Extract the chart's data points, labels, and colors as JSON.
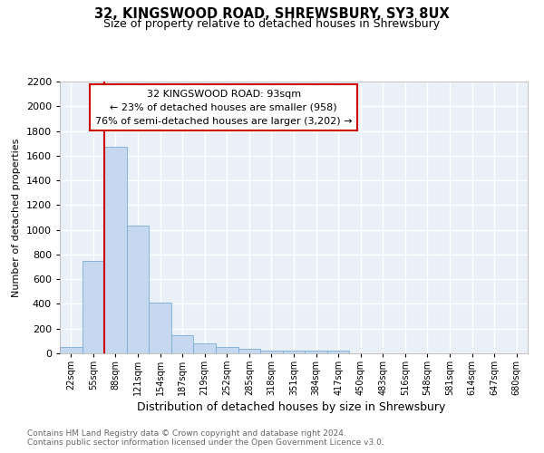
{
  "title": "32, KINGSWOOD ROAD, SHREWSBURY, SY3 8UX",
  "subtitle": "Size of property relative to detached houses in Shrewsbury",
  "xlabel": "Distribution of detached houses by size in Shrewsbury",
  "ylabel": "Number of detached properties",
  "bin_labels": [
    "22sqm",
    "55sqm",
    "88sqm",
    "121sqm",
    "154sqm",
    "187sqm",
    "219sqm",
    "252sqm",
    "285sqm",
    "318sqm",
    "351sqm",
    "384sqm",
    "417sqm",
    "450sqm",
    "483sqm",
    "516sqm",
    "548sqm",
    "581sqm",
    "614sqm",
    "647sqm",
    "680sqm"
  ],
  "bar_values": [
    50,
    750,
    1670,
    1035,
    410,
    150,
    82,
    48,
    35,
    20,
    20,
    20,
    20,
    0,
    0,
    0,
    0,
    0,
    0,
    0,
    0
  ],
  "bar_color": "#c5d8ef",
  "bar_edge_color": "#7aadd4",
  "red_line_color": "#cc0000",
  "annotation_box_color": "#ffffff",
  "annotation_box_edge": "#cc0000",
  "property_label": "32 KINGSWOOD ROAD: 93sqm",
  "annotation_line1": "← 23% of detached houses are smaller (958)",
  "annotation_line2": "76% of semi-detached houses are larger (3,202) →",
  "ylim": [
    0,
    2200
  ],
  "yticks": [
    0,
    200,
    400,
    600,
    800,
    1000,
    1200,
    1400,
    1600,
    1800,
    2000,
    2200
  ],
  "bg_color": "#eaf0f8",
  "grid_color": "#ffffff",
  "footnote1": "Contains HM Land Registry data © Crown copyright and database right 2024.",
  "footnote2": "Contains public sector information licensed under the Open Government Licence v3.0."
}
